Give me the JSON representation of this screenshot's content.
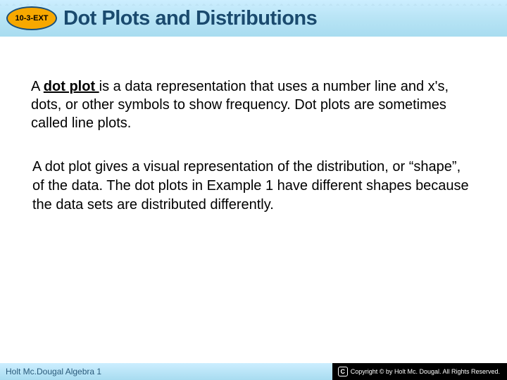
{
  "header": {
    "lesson_code": "10-3-EXT",
    "title": "Dot Plots and Distributions",
    "background_gradient_top": "#cceeff",
    "background_gradient_bottom": "#a8dcf0",
    "title_color": "#1a4a6e",
    "badge_fill": "#f7a800",
    "badge_border": "#1a4f7a"
  },
  "body": {
    "para1_lead": "A ",
    "para1_term": "dot plot ",
    "para1_rest": "is a data representation that uses a number line and x's, dots, or other symbols to show frequency. Dot plots are sometimes called line plots.",
    "para2": "A dot plot gives a visual representation of the distribution, or “shape”, of the data. The dot plots in Example 1 have different shapes because the data sets are distributed differently.",
    "font_size_pt": 20,
    "text_color": "#000000"
  },
  "footer": {
    "left_text": "Holt Mc.Dougal Algebra 1",
    "copyright_symbol": "C",
    "copyright_text": "Copyright © by Holt Mc. Dougal. All Rights Reserved.",
    "left_color": "#2a5a7a",
    "right_bg": "#000000",
    "right_text_color": "#ffffff"
  }
}
